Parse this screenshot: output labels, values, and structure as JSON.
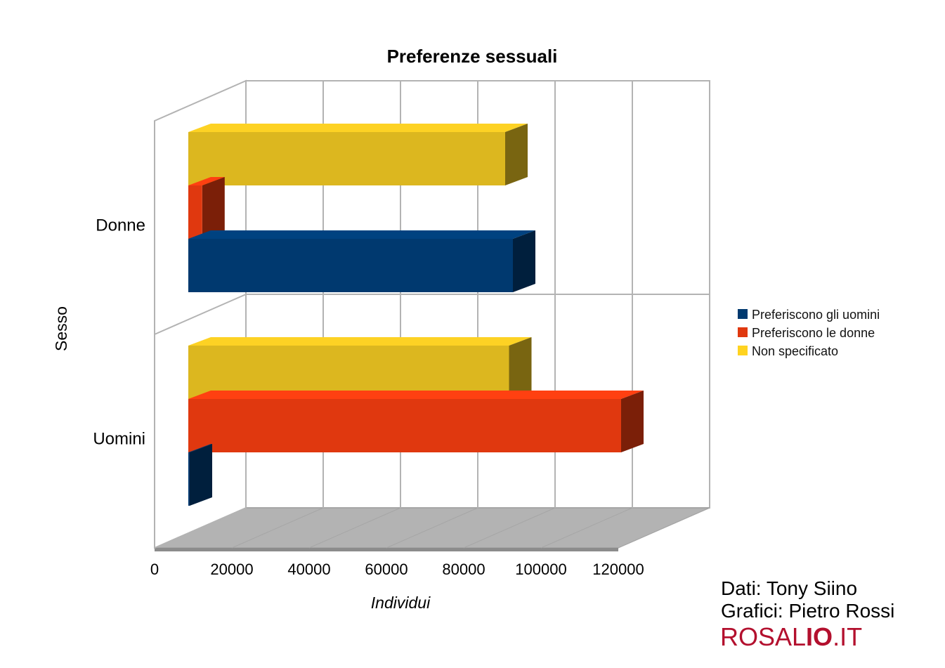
{
  "chart_data": {
    "type": "bar",
    "orientation": "horizontal",
    "style": "3d",
    "title": "Preferenze sessuali",
    "xlabel": "Individui",
    "ylabel": "Sesso",
    "xlim": [
      0,
      120000
    ],
    "xticks": [
      "0",
      "20000",
      "40000",
      "60000",
      "80000",
      "100000",
      "120000"
    ],
    "categories": [
      "Donne",
      "Uomini"
    ],
    "series": [
      {
        "name": "Preferiscono gli uomini",
        "color": "#00396f",
        "values": [
          84000,
          300
        ]
      },
      {
        "name": "Preferiscono le donne",
        "color": "#e0380f",
        "values": [
          3600,
          112000
        ]
      },
      {
        "name": "Non specificato",
        "color": "#dcb71f",
        "values": [
          82000,
          83000
        ]
      }
    ],
    "grid": true,
    "legend_position": "right"
  },
  "legend": {
    "items": [
      {
        "label": "Preferiscono gli uomini",
        "color": "#00396f"
      },
      {
        "label": "Preferiscono le donne",
        "color": "#e0380f"
      },
      {
        "label": "Non specificato",
        "color": "#ffd320"
      }
    ]
  },
  "credits": {
    "data_line": "Dati: Tony Siino",
    "charts_line": "Grafici: Pietro Rossi",
    "brand_light": "ROSAL",
    "brand_bold": "IO",
    "brand_tail": ".IT"
  }
}
